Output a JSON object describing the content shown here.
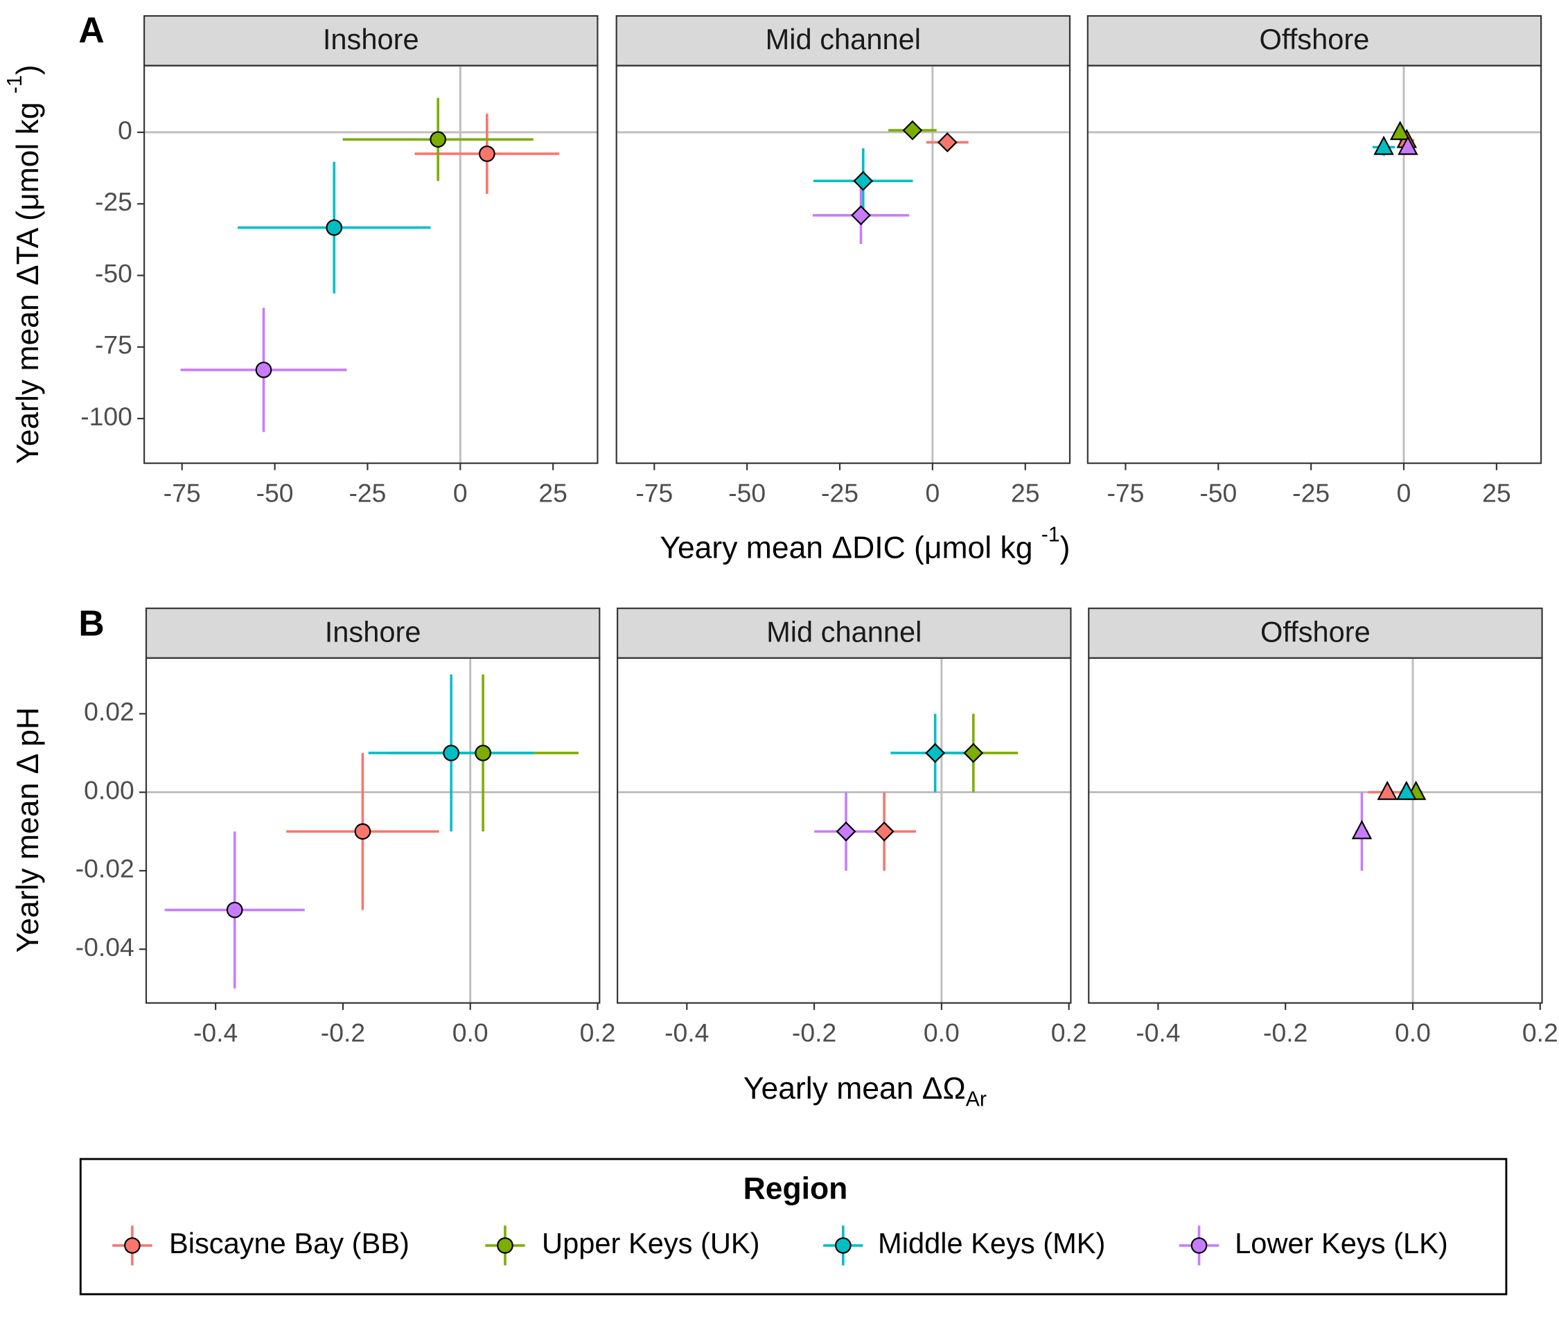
{
  "chart_data": [
    {
      "type": "scatter",
      "title": "Inshore",
      "marker": "circle",
      "xlim": [
        -85.2,
        37
      ],
      "ylim": [
        -115.6,
        23.3
      ],
      "xticks": [
        -75,
        -50,
        -25,
        0,
        25
      ],
      "yticks": [
        -100,
        -75,
        -50,
        -25,
        0
      ],
      "hline": 0,
      "vline": 0,
      "series": [
        {
          "name": "Biscayne Bay (BB)",
          "color": "#F8766D",
          "x": [
            7.2
          ],
          "y": [
            -7.5
          ],
          "xerr": [
            19.5
          ],
          "yerr": [
            14
          ]
        },
        {
          "name": "Upper Keys (UK)",
          "color": "#7CAE00",
          "x": [
            -6
          ],
          "y": [
            -2.5
          ],
          "xerr": [
            25.7
          ],
          "yerr": [
            14.5
          ]
        },
        {
          "name": "Middle Keys (MK)",
          "color": "#00BFC4",
          "x": [
            -34
          ],
          "y": [
            -33.3
          ],
          "xerr": [
            26
          ],
          "yerr": [
            23
          ]
        },
        {
          "name": "Lower Keys (LK)",
          "color": "#C77CFF",
          "x": [
            -53
          ],
          "y": [
            -83
          ],
          "xerr": [
            22.4
          ],
          "yerr": [
            21.7
          ]
        }
      ]
    },
    {
      "type": "scatter",
      "title": "Mid channel",
      "marker": "diamond",
      "xlim": [
        -85.2,
        37
      ],
      "ylim": [
        -115.6,
        23.3
      ],
      "xticks": [
        -75,
        -50,
        -25,
        0,
        25
      ],
      "hline": 0,
      "vline": 0,
      "series": [
        {
          "name": "Biscayne Bay (BB)",
          "color": "#F8766D",
          "x": [
            4
          ],
          "y": [
            -3.5
          ],
          "xerr": [
            5.7
          ],
          "yerr": [
            3
          ]
        },
        {
          "name": "Upper Keys (UK)",
          "color": "#7CAE00",
          "x": [
            -5.4
          ],
          "y": [
            0.7
          ],
          "xerr": [
            6.5
          ],
          "yerr": [
            1
          ]
        },
        {
          "name": "Middle Keys (MK)",
          "color": "#00BFC4",
          "x": [
            -18.7
          ],
          "y": [
            -17
          ],
          "xerr": [
            13.4
          ],
          "yerr": [
            11.4
          ]
        },
        {
          "name": "Lower Keys (LK)",
          "color": "#C77CFF",
          "x": [
            -19.3
          ],
          "y": [
            -29
          ],
          "xerr": [
            13
          ],
          "yerr": [
            10
          ]
        }
      ]
    },
    {
      "type": "scatter",
      "title": "Offshore",
      "marker": "triangle",
      "xlim": [
        -85.2,
        37
      ],
      "ylim": [
        -115.6,
        23.3
      ],
      "xticks": [
        -75,
        -50,
        -25,
        0,
        25
      ],
      "hline": 0,
      "vline": 0,
      "series": [
        {
          "name": "Biscayne Bay (BB)",
          "color": "#F8766D",
          "x": [
            0.8
          ],
          "y": [
            -2.8
          ],
          "xerr": [
            2
          ],
          "yerr": [
            2
          ]
        },
        {
          "name": "Upper Keys (UK)",
          "color": "#7CAE00",
          "x": [
            -1
          ],
          "y": [
            0
          ],
          "xerr": [
            1.5
          ],
          "yerr": [
            1.5
          ]
        },
        {
          "name": "Middle Keys (MK)",
          "color": "#00BFC4",
          "x": [
            -5.4
          ],
          "y": [
            -5.2
          ],
          "xerr": [
            3
          ],
          "yerr": [
            3
          ]
        },
        {
          "name": "Lower Keys (LK)",
          "color": "#C77CFF",
          "x": [
            1.1
          ],
          "y": [
            -5.2
          ],
          "xerr": [
            1
          ],
          "yerr": [
            1
          ]
        }
      ]
    },
    {
      "type": "scatter",
      "title": "Inshore",
      "marker": "circle",
      "xlim": [
        -0.509,
        0.203
      ],
      "ylim": [
        -0.0537,
        0.0342
      ],
      "xticks": [
        -0.4,
        -0.2,
        {
          "value": 0,
          "label": "0.0"
        },
        0.2
      ],
      "yticks": [
        -0.04,
        -0.02,
        {
          "value": 0,
          "label": "0.00"
        },
        0.02
      ],
      "hline": 0,
      "vline": 0,
      "series": [
        {
          "name": "Biscayne Bay (BB)",
          "color": "#F8766D",
          "x": [
            -0.169
          ],
          "y": [
            -0.01
          ],
          "xerr": [
            0.12
          ],
          "yerr": [
            0.02
          ]
        },
        {
          "name": "Upper Keys (UK)",
          "color": "#7CAE00",
          "x": [
            0.02
          ],
          "y": [
            0.01
          ],
          "xerr": [
            0.15
          ],
          "yerr": [
            0.02
          ]
        },
        {
          "name": "Middle Keys (MK)",
          "color": "#00BFC4",
          "x": [
            -0.03
          ],
          "y": [
            0.01
          ],
          "xerr": [
            0.13
          ],
          "yerr": [
            0.02
          ]
        },
        {
          "name": "Lower Keys (LK)",
          "color": "#C77CFF",
          "x": [
            -0.37
          ],
          "y": [
            -0.03
          ],
          "xerr": [
            0.11
          ],
          "yerr": [
            0.02
          ]
        }
      ]
    },
    {
      "type": "scatter",
      "title": "Mid channel",
      "marker": "diamond",
      "xlim": [
        -0.509,
        0.203
      ],
      "ylim": [
        -0.0537,
        0.0342
      ],
      "xticks": [
        -0.4,
        -0.2,
        {
          "value": 0,
          "label": "0.0"
        },
        0.2
      ],
      "hline": 0,
      "vline": 0,
      "series": [
        {
          "name": "Biscayne Bay (BB)",
          "color": "#F8766D",
          "x": [
            -0.09
          ],
          "y": [
            -0.01
          ],
          "xerr": [
            0.05
          ],
          "yerr": [
            0.01
          ]
        },
        {
          "name": "Upper Keys (UK)",
          "color": "#7CAE00",
          "x": [
            0.05
          ],
          "y": [
            0.01
          ],
          "xerr": [
            0.07
          ],
          "yerr": [
            0.01
          ]
        },
        {
          "name": "Middle Keys (MK)",
          "color": "#00BFC4",
          "x": [
            -0.01
          ],
          "y": [
            0.01
          ],
          "xerr": [
            0.07
          ],
          "yerr": [
            0.01
          ]
        },
        {
          "name": "Lower Keys (LK)",
          "color": "#C77CFF",
          "x": [
            -0.15
          ],
          "y": [
            -0.01
          ],
          "xerr": [
            0.05
          ],
          "yerr": [
            0.01
          ]
        }
      ]
    },
    {
      "type": "scatter",
      "title": "Offshore",
      "marker": "triangle",
      "xlim": [
        -0.509,
        0.203
      ],
      "ylim": [
        -0.0537,
        0.0342
      ],
      "xticks": [
        -0.4,
        -0.2,
        {
          "value": 0,
          "label": "0.0"
        },
        0.2
      ],
      "hline": 0,
      "vline": 0,
      "series": [
        {
          "name": "Biscayne Bay (BB)",
          "color": "#F8766D",
          "x": [
            -0.04
          ],
          "y": [
            0
          ],
          "xerr": [
            0.03
          ],
          "yerr": [
            0
          ]
        },
        {
          "name": "Upper Keys (UK)",
          "color": "#7CAE00",
          "x": [
            0.005
          ],
          "y": [
            0
          ],
          "xerr": [
            0.01
          ],
          "yerr": [
            0
          ]
        },
        {
          "name": "Middle Keys (MK)",
          "color": "#00BFC4",
          "x": [
            -0.01
          ],
          "y": [
            0
          ],
          "xerr": [
            0.01
          ],
          "yerr": [
            0
          ]
        },
        {
          "name": "Lower Keys (LK)",
          "color": "#C77CFF",
          "x": [
            -0.08
          ],
          "y": [
            -0.01
          ],
          "xerr": [
            0.01
          ],
          "yerr": [
            0.01
          ]
        }
      ]
    }
  ],
  "panels": [
    {
      "label": "A",
      "x_label": {
        "text": "Yeary mean ΔDIC (μmol kg ",
        "sup": "-1",
        "end": ")"
      },
      "y_label": {
        "text": "Yearly mean ΔTA (μmol kg ",
        "sup": "-1",
        "end": ")"
      }
    },
    {
      "label": "B",
      "x_label": {
        "text": "Yearly mean ΔΩ",
        "sub": "Ar"
      },
      "y_label": {
        "text": "Yearly mean Δ pH"
      }
    }
  ],
  "legend": {
    "title": "Region"
  }
}
